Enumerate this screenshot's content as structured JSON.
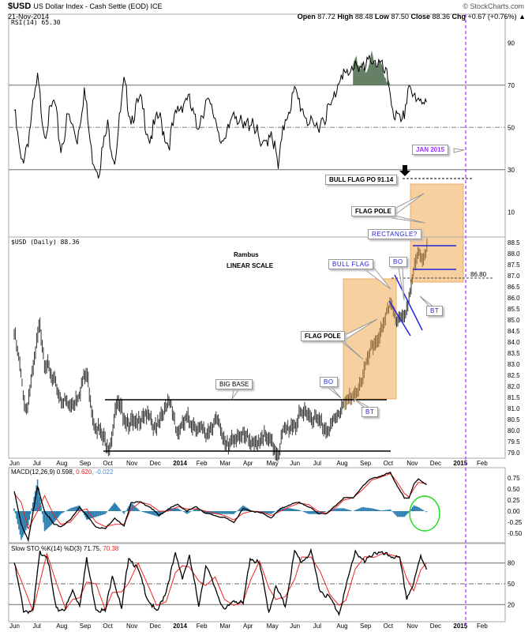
{
  "header": {
    "symbol": "$USD",
    "name": "US Dollar Index - Cash Settle (EOD) ICE",
    "date": "21-Nov-2014",
    "brand": "© StockCharts.com",
    "open_l": "Open",
    "open": "87.72",
    "high_l": "High",
    "high": "88.48",
    "low_l": "Low",
    "low": "87.50",
    "close_l": "Close",
    "close": "88.36",
    "chg_l": "Chg",
    "chg": "+0.67 (+0.76%) ▲"
  },
  "panels": {
    "rsi_label": "RSI(14) 65.30",
    "price_label": "$USD (Daily) 88.36",
    "macd_label": "MACD(12,26,9) 0.598,",
    "macd_signal": "0.620,",
    "macd_hist": "-0.022",
    "sto_label": "Slow STO %K(14) %D(3) 71.75,",
    "sto_d": "70.38"
  },
  "annotations": {
    "rambus": "Rambus",
    "scale": "LINEAR SCALE",
    "bull_flag_po": "BULL FLAG PO 91.14",
    "flag_pole_top": "FLAG POLE",
    "rectangle": "RECTANGLE?",
    "bull_flag": "BULL FLAG",
    "bo_top": "BO",
    "bt_top": "BT",
    "level": "86.80",
    "flag_pole": "FLAG POLE",
    "big_base": "BIG BASE",
    "bo": "BO",
    "bt": "BT",
    "jan": "JAN 2015"
  },
  "colors": {
    "orange": "#f5c88e",
    "purple": "#9933ff",
    "macd_hist": "#2a7fb0",
    "signal": "#ee2222",
    "rsi_fill": "#4a6a4a",
    "green": "#22dd22",
    "blue": "#2222dd"
  },
  "chart_data": [
    {
      "type": "line",
      "title": "RSI(14)",
      "ylim": [
        0,
        100
      ],
      "ticks": [
        90,
        70,
        50,
        30,
        10
      ],
      "levels": [
        70,
        50,
        30
      ],
      "x": [
        0,
        0.3,
        0.6,
        1,
        1.3,
        1.7,
        2,
        2.3,
        2.7,
        3,
        3.3,
        3.6,
        4,
        4.3,
        4.7,
        5,
        5.4,
        5.8,
        6.2,
        6.6,
        7,
        7.4,
        7.8,
        8.2,
        8.6,
        9,
        9.4,
        9.8,
        10.2,
        10.6,
        11,
        11.3,
        11.6,
        12,
        12.4,
        12.8,
        13.2,
        13.6,
        14,
        14.3,
        14.6,
        15,
        15.3,
        15.6,
        16,
        16.3,
        16.6,
        16.9,
        17.2,
        17.67
      ],
      "values": [
        58,
        32,
        45,
        72,
        48,
        62,
        40,
        55,
        45,
        68,
        38,
        30,
        50,
        35,
        70,
        55,
        62,
        45,
        55,
        42,
        58,
        65,
        50,
        62,
        55,
        40,
        60,
        48,
        55,
        38,
        50,
        30,
        55,
        66,
        58,
        48,
        55,
        60,
        78,
        72,
        82,
        76,
        84,
        80,
        72,
        55,
        50,
        72,
        60,
        65.3
      ]
    },
    {
      "type": "ohlc",
      "title": "$USD (Daily)",
      "ylim": [
        78.8,
        88.6
      ],
      "ticks": [
        88.5,
        88.0,
        87.5,
        87.0,
        86.5,
        86.0,
        85.5,
        85.0,
        84.5,
        84.0,
        83.5,
        83.0,
        82.5,
        82.0,
        81.5,
        81.0,
        80.5,
        80.0,
        79.5,
        79.0
      ],
      "x": [
        0,
        0.2,
        0.5,
        0.8,
        1.1,
        1.3,
        1.6,
        2,
        2.4,
        2.8,
        3.1,
        3.4,
        3.7,
        4.1,
        4.4,
        4.8,
        5.2,
        5.6,
        6,
        6.3,
        6.7,
        7,
        7.4,
        7.8,
        8.2,
        8.6,
        9,
        9.4,
        9.8,
        10.2,
        10.6,
        11,
        11.3,
        11.5,
        12,
        12.5,
        13,
        13.4,
        13.8,
        14.1,
        14.5,
        14.9,
        15.2,
        15.5,
        15.8,
        16.1,
        16.4,
        16.7,
        16.9,
        17.1,
        17.3,
        17.5,
        17.67
      ],
      "values": [
        84.4,
        83.2,
        80.8,
        82.6,
        84.9,
        83.2,
        82.4,
        81.5,
        81.0,
        81.8,
        82.6,
        80.5,
        79.8,
        79.3,
        81.2,
        80.5,
        80.2,
        80.9,
        80.0,
        80.8,
        81.2,
        79.9,
        80.5,
        80.2,
        79.8,
        80.5,
        79.6,
        79.4,
        80.0,
        79.2,
        79.8,
        79.4,
        79.0,
        79.9,
        80.3,
        80.9,
        80.4,
        80.1,
        80.5,
        81.3,
        81.4,
        82.4,
        83.4,
        84.1,
        84.6,
        85.9,
        84.9,
        85.1,
        86.1,
        87.3,
        87.9,
        87.8,
        88.36
      ]
    },
    {
      "type": "line",
      "title": "MACD(12,26,9)",
      "ylim": [
        -0.75,
        1.0
      ],
      "ticks": [
        0.75,
        0.5,
        0.25,
        0.0,
        -0.25,
        -0.5
      ],
      "x": [
        0,
        0.3,
        0.6,
        1,
        1.3,
        1.7,
        2,
        2.4,
        2.8,
        3.1,
        3.5,
        3.9,
        4.3,
        4.7,
        5,
        5.4,
        5.8,
        6.2,
        6.6,
        7,
        7.4,
        7.8,
        8.2,
        8.6,
        9,
        9.4,
        9.8,
        10.2,
        10.6,
        11,
        11.4,
        11.8,
        12.2,
        12.6,
        13,
        13.4,
        13.8,
        14.1,
        14.5,
        14.9,
        15.3,
        15.7,
        16.1,
        16.4,
        16.7,
        16.9,
        17.1,
        17.3,
        17.67
      ],
      "macd": [
        0.45,
        -0.3,
        -0.65,
        0.55,
        0.0,
        -0.3,
        -0.35,
        -0.2,
        0.1,
        -0.1,
        -0.35,
        -0.4,
        -0.15,
        -0.35,
        0.2,
        0.2,
        0.1,
        -0.1,
        0.05,
        0.15,
        0.0,
        0.1,
        -0.05,
        -0.1,
        -0.15,
        -0.25,
        0.05,
        0.0,
        -0.05,
        -0.15,
        0.05,
        0.15,
        0.2,
        0.1,
        -0.05,
        -0.05,
        0.15,
        0.3,
        0.3,
        0.55,
        0.75,
        0.78,
        0.88,
        0.55,
        0.3,
        0.3,
        0.6,
        0.72,
        0.598
      ],
      "signal": [
        0.4,
        0.2,
        -0.4,
        0.0,
        0.35,
        -0.1,
        -0.3,
        -0.25,
        0.0,
        0.05,
        -0.25,
        -0.35,
        -0.3,
        -0.3,
        0.05,
        0.2,
        0.15,
        0.0,
        0.0,
        0.1,
        0.05,
        0.05,
        0.0,
        -0.05,
        -0.1,
        -0.2,
        -0.05,
        0.0,
        -0.02,
        -0.1,
        0.0,
        0.1,
        0.18,
        0.15,
        0.0,
        -0.05,
        0.1,
        0.25,
        0.3,
        0.48,
        0.7,
        0.77,
        0.85,
        0.65,
        0.4,
        0.32,
        0.5,
        0.65,
        0.62
      ]
    },
    {
      "type": "line",
      "title": "Slow STO %K(14) %D(3)",
      "ylim": [
        0,
        100
      ],
      "ticks": [
        80,
        50,
        20
      ],
      "levels": [
        80,
        50,
        20
      ],
      "x": [
        0,
        0.4,
        0.8,
        1.1,
        1.4,
        1.8,
        2.2,
        2.5,
        2.8,
        3.1,
        3.5,
        3.9,
        4.2,
        4.6,
        4.9,
        5.3,
        5.7,
        6.1,
        6.5,
        6.9,
        7.2,
        7.5,
        7.9,
        8.2,
        8.6,
        9,
        9.4,
        9.8,
        10.1,
        10.5,
        10.9,
        11.2,
        11.6,
        12,
        12.3,
        12.7,
        13.1,
        13.5,
        13.9,
        14.2,
        14.6,
        15,
        15.4,
        15.8,
        16.2,
        16.5,
        16.8,
        17.1,
        17.4,
        17.67
      ],
      "values": [
        80,
        12,
        10,
        95,
        92,
        12,
        15,
        40,
        20,
        85,
        15,
        10,
        65,
        12,
        90,
        70,
        30,
        8,
        40,
        92,
        60,
        88,
        20,
        75,
        45,
        10,
        28,
        20,
        88,
        78,
        10,
        45,
        18,
        95,
        82,
        95,
        40,
        30,
        8,
        45,
        98,
        80,
        96,
        92,
        90,
        85,
        30,
        50,
        90,
        71.75
      ]
    },
    {
      "x_axis_labels": [
        "Jun",
        "Jul",
        "Aug",
        "Sep",
        "Oct",
        "Nov",
        "Dec",
        "2014",
        "Feb",
        "Mar",
        "Apr",
        "May",
        "Jun",
        "Jul",
        "Aug",
        "Sep",
        "Oct",
        "Nov",
        "Dec",
        "2015",
        "Feb"
      ]
    }
  ]
}
